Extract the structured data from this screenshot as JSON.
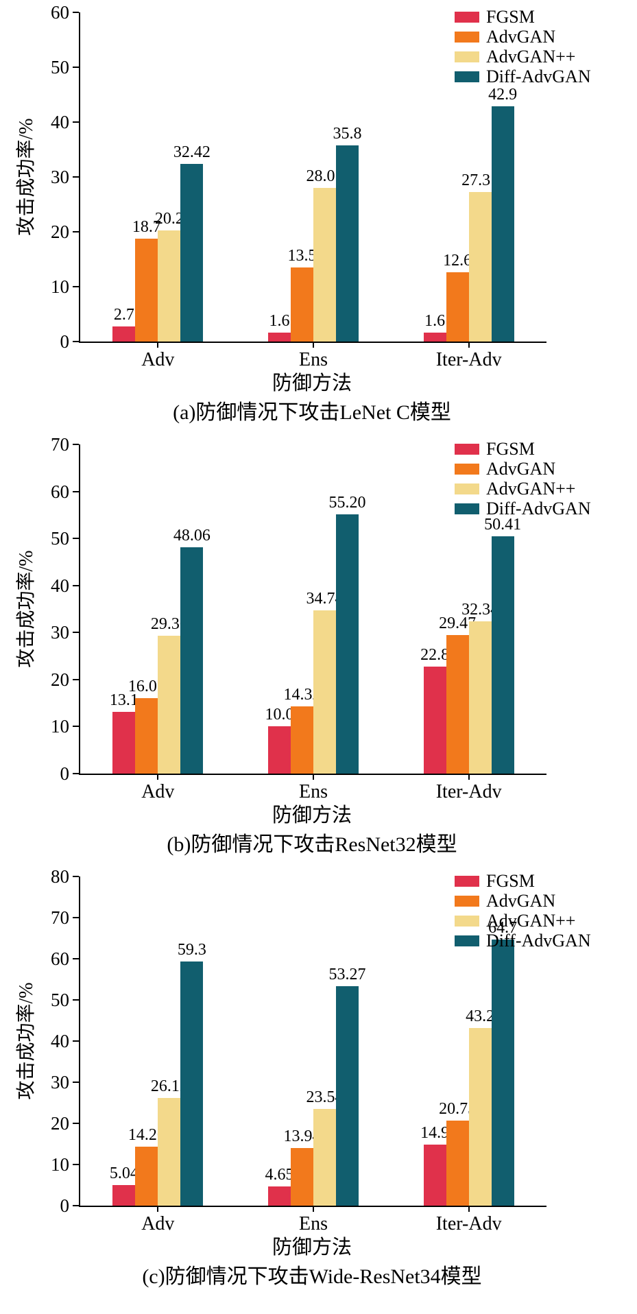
{
  "chart_data": [
    {
      "type": "bar",
      "caption": "(a)防御情况下攻击LeNet C模型",
      "xlabel": "防御方法",
      "ylabel": "攻击成功率/%",
      "ylim": [
        0,
        60
      ],
      "ytick_step": 10,
      "legend_position": "upper right",
      "grid": false,
      "categories": [
        "Adv",
        "Ens",
        "Iter-Adv"
      ],
      "series": [
        {
          "name": "FGSM",
          "color": "#e0314b",
          "values": [
            2.7,
            1.6,
            1.6
          ],
          "labels": [
            "2.7",
            "1.6",
            "1.6"
          ]
        },
        {
          "name": "AdvGAN",
          "color": "#f2791c",
          "values": [
            18.7,
            13.5,
            12.6
          ],
          "labels": [
            "18.7",
            "13.5",
            "12.6"
          ]
        },
        {
          "name": "AdvGAN++",
          "color": "#f3d98b",
          "values": [
            20.2,
            28.01,
            27.31
          ],
          "labels": [
            "20.2",
            "28.01",
            "27.31"
          ]
        },
        {
          "name": "Diff-AdvGAN",
          "color": "#115e6e",
          "values": [
            32.42,
            35.8,
            42.9
          ],
          "labels": [
            "32.42",
            "35.8",
            "42.9"
          ]
        }
      ]
    },
    {
      "type": "bar",
      "caption": "(b)防御情况下攻击ResNet32模型",
      "xlabel": "防御方法",
      "ylabel": "攻击成功率/%",
      "ylim": [
        0,
        70
      ],
      "ytick_step": 10,
      "legend_position": "upper right",
      "grid": false,
      "categories": [
        "Adv",
        "Ens",
        "Iter-Adv"
      ],
      "series": [
        {
          "name": "FGSM",
          "color": "#e0314b",
          "values": [
            13.1,
            10.0,
            22.8
          ],
          "labels": [
            "13.1",
            "10.0",
            "22.8"
          ]
        },
        {
          "name": "AdvGAN",
          "color": "#f2791c",
          "values": [
            16.03,
            14.32,
            29.47
          ],
          "labels": [
            "16.03",
            "14.32",
            "29.47"
          ]
        },
        {
          "name": "AdvGAN++",
          "color": "#f3d98b",
          "values": [
            29.36,
            34.74,
            32.34
          ],
          "labels": [
            "29.36",
            "34.74",
            "32.34"
          ]
        },
        {
          "name": "Diff-AdvGAN",
          "color": "#115e6e",
          "values": [
            48.06,
            55.2,
            50.41
          ],
          "labels": [
            "48.06",
            "55.20",
            "50.41"
          ]
        }
      ]
    },
    {
      "type": "bar",
      "caption": "(c)防御情况下攻击Wide-ResNet34模型",
      "xlabel": "防御方法",
      "ylabel": "攻击成功率/%",
      "ylim": [
        0,
        80
      ],
      "ytick_step": 10,
      "legend_position": "upper right",
      "grid": false,
      "categories": [
        "Adv",
        "Ens",
        "Iter-Adv"
      ],
      "series": [
        {
          "name": "FGSM",
          "color": "#e0314b",
          "values": [
            5.04,
            4.65,
            14.9
          ],
          "labels": [
            "5.04",
            "4.65",
            "14.9"
          ]
        },
        {
          "name": "AdvGAN",
          "color": "#f2791c",
          "values": [
            14.26,
            13.94,
            20.75
          ],
          "labels": [
            "14.26",
            "13.94",
            "20.75"
          ]
        },
        {
          "name": "AdvGAN++",
          "color": "#f3d98b",
          "values": [
            26.12,
            23.54,
            43.2
          ],
          "labels": [
            "26.12",
            "23.54",
            "43.2"
          ]
        },
        {
          "name": "Diff-AdvGAN",
          "color": "#115e6e",
          "values": [
            59.3,
            53.27,
            64.7
          ],
          "labels": [
            "59.3",
            "53.27",
            "64.7"
          ]
        }
      ]
    }
  ]
}
